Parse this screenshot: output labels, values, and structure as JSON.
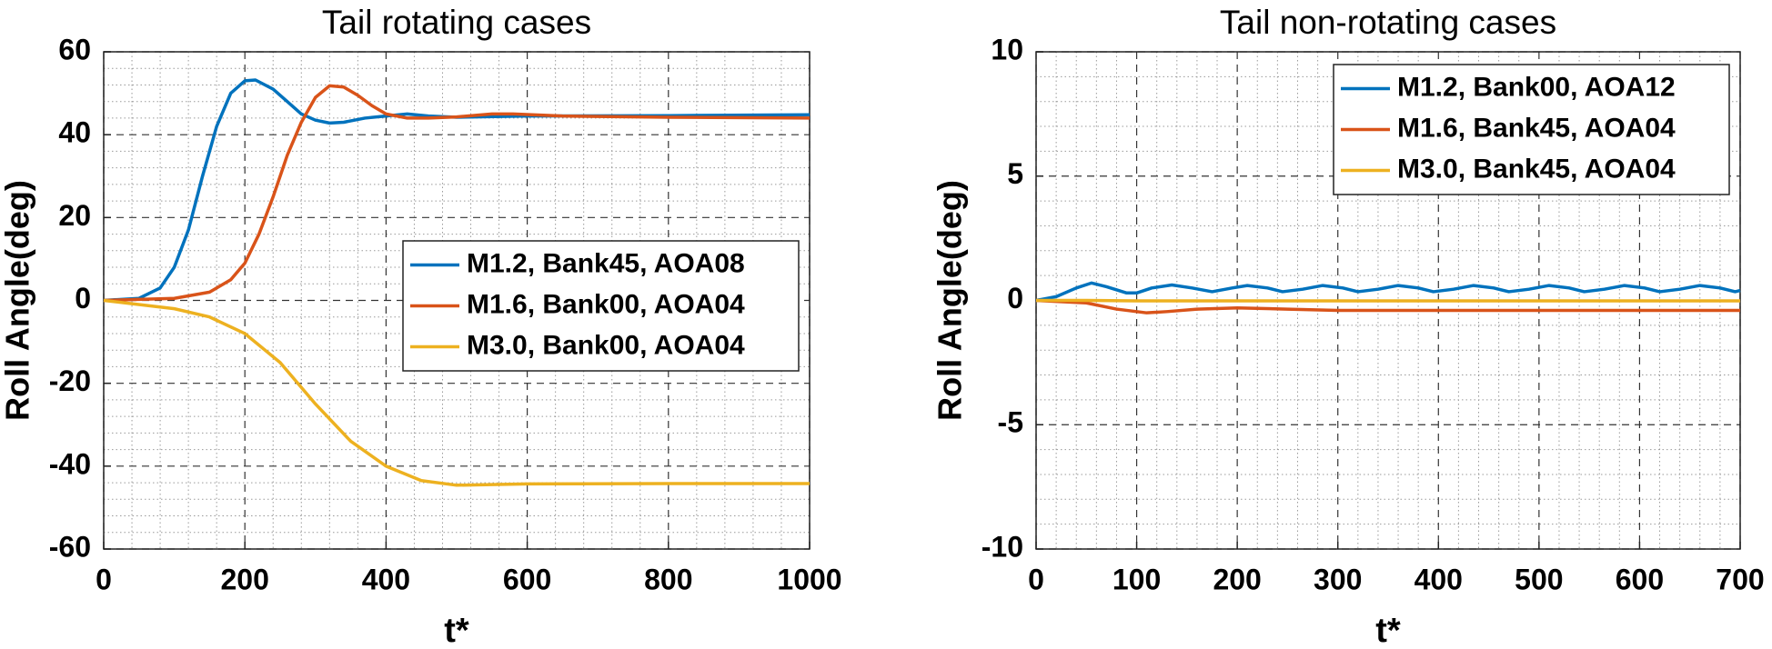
{
  "chart_data": [
    {
      "type": "line",
      "title": "Tail rotating cases",
      "xlabel": "t*",
      "ylabel": "Roll Angle(deg)",
      "xlim": [
        0,
        1000
      ],
      "ylim": [
        -60,
        60
      ],
      "xticks": [
        0,
        200,
        400,
        600,
        800,
        1000
      ],
      "yticks": [
        -60,
        -40,
        -20,
        0,
        20,
        40,
        60
      ],
      "grid": true,
      "minor_grid": true,
      "legend": "center right",
      "series": [
        {
          "name": "M1.2, Bank45, AOA08",
          "color": "#0072BD",
          "x": [
            0,
            50,
            80,
            100,
            120,
            140,
            160,
            180,
            200,
            215,
            240,
            260,
            280,
            300,
            320,
            340,
            370,
            400,
            430,
            460,
            500,
            600,
            800,
            1000
          ],
          "values": [
            0,
            0.5,
            3,
            8,
            17,
            30,
            42,
            50,
            53,
            53.2,
            51,
            48,
            45,
            43.5,
            42.8,
            43,
            44,
            44.5,
            45,
            44.5,
            44.2,
            44.5,
            44.6,
            44.8
          ]
        },
        {
          "name": "M1.6, Bank00, AOA04",
          "color": "#D95319",
          "x": [
            0,
            100,
            150,
            180,
            200,
            220,
            240,
            260,
            280,
            300,
            320,
            340,
            360,
            380,
            400,
            430,
            460,
            500,
            550,
            580,
            650,
            800,
            1000
          ],
          "values": [
            0,
            0.5,
            2,
            5,
            9,
            16,
            25,
            35,
            43,
            49,
            51.8,
            51.5,
            49.5,
            47,
            45,
            44,
            44,
            44.3,
            45,
            45,
            44.5,
            44.2,
            44
          ]
        },
        {
          "name": "M3.0, Bank00, AOA04",
          "color": "#EDB120",
          "x": [
            0,
            100,
            150,
            200,
            250,
            300,
            350,
            400,
            450,
            500,
            600,
            800,
            1000
          ],
          "values": [
            0,
            -2,
            -4,
            -8,
            -15,
            -25,
            -34,
            -40,
            -43.5,
            -44.6,
            -44.3,
            -44.2,
            -44.2
          ]
        }
      ]
    },
    {
      "type": "line",
      "title": "Tail non-rotating cases",
      "xlabel": "t*",
      "ylabel": "Roll Angle(deg)",
      "xlim": [
        0,
        700
      ],
      "ylim": [
        -10,
        10
      ],
      "xticks": [
        0,
        100,
        200,
        300,
        400,
        500,
        600,
        700
      ],
      "yticks": [
        -10,
        -5,
        0,
        5,
        10
      ],
      "grid": true,
      "minor_grid": true,
      "legend": "upper right",
      "series": [
        {
          "name": "M1.2, Bank00, AOA12",
          "color": "#0072BD",
          "x": [
            0,
            20,
            40,
            55,
            70,
            90,
            100,
            115,
            135,
            155,
            175,
            195,
            210,
            230,
            245,
            265,
            285,
            305,
            320,
            340,
            360,
            380,
            395,
            415,
            435,
            455,
            470,
            490,
            510,
            530,
            545,
            565,
            585,
            605,
            620,
            640,
            660,
            680,
            695,
            700
          ],
          "values": [
            0,
            0.15,
            0.5,
            0.7,
            0.55,
            0.3,
            0.3,
            0.5,
            0.62,
            0.5,
            0.35,
            0.5,
            0.6,
            0.5,
            0.35,
            0.45,
            0.6,
            0.5,
            0.35,
            0.45,
            0.6,
            0.5,
            0.35,
            0.45,
            0.6,
            0.5,
            0.35,
            0.45,
            0.6,
            0.5,
            0.35,
            0.45,
            0.6,
            0.5,
            0.35,
            0.45,
            0.6,
            0.5,
            0.35,
            0.4
          ]
        },
        {
          "name": "M1.6, Bank45, AOA04",
          "color": "#D95319",
          "x": [
            0,
            50,
            80,
            110,
            130,
            160,
            200,
            250,
            300,
            700
          ],
          "values": [
            0,
            -0.1,
            -0.35,
            -0.5,
            -0.45,
            -0.35,
            -0.3,
            -0.35,
            -0.4,
            -0.4
          ]
        },
        {
          "name": "M3.0, Bank45, AOA04",
          "color": "#EDB120",
          "x": [
            0,
            50,
            100,
            700
          ],
          "values": [
            0,
            0,
            -0.02,
            -0.02
          ]
        }
      ]
    }
  ]
}
